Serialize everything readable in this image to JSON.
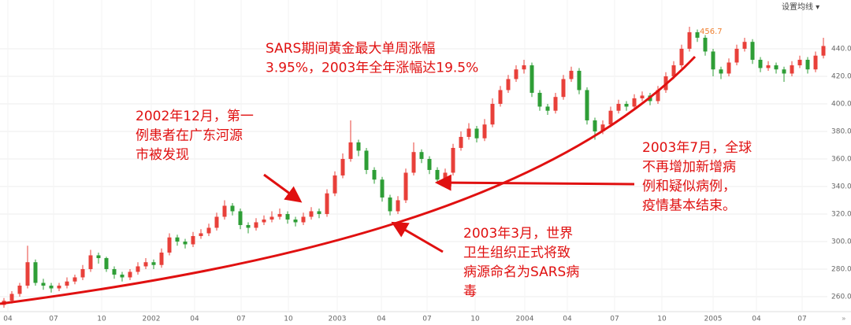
{
  "chart_data": {
    "type": "candlestick",
    "button": "设置均线 ▾",
    "peak_label": "456.7",
    "up_color": "#e8403a",
    "down_color": "#2e9e36",
    "annotation_color": "#e01010",
    "xlim": [
      -0.5,
      104.5
    ],
    "xticks": [
      {
        "value": 0.5,
        "label": "04"
      },
      {
        "value": 6.3,
        "label": "07"
      },
      {
        "value": 12.4,
        "label": "10"
      },
      {
        "value": 18.7,
        "label": "2002"
      },
      {
        "value": 24.2,
        "label": "04"
      },
      {
        "value": 30.1,
        "label": "07"
      },
      {
        "value": 36.1,
        "label": "10"
      },
      {
        "value": 42.3,
        "label": "2003"
      },
      {
        "value": 47.9,
        "label": "04"
      },
      {
        "value": 53.7,
        "label": "07"
      },
      {
        "value": 59.8,
        "label": "10"
      },
      {
        "value": 66.1,
        "label": "2004"
      },
      {
        "value": 71.5,
        "label": "04"
      },
      {
        "value": 77.5,
        "label": "07"
      },
      {
        "value": 83.5,
        "label": "10"
      },
      {
        "value": 90,
        "label": "2005"
      },
      {
        "value": 95.5,
        "label": "04"
      },
      {
        "value": 101.3,
        "label": "07"
      }
    ],
    "ylim": [
      249.7,
      475.4
    ],
    "yticks": [
      {
        "value": 260,
        "label": "260.00"
      },
      {
        "value": 280,
        "label": "280.00"
      },
      {
        "value": 300,
        "label": "300.00"
      },
      {
        "value": 320,
        "label": "320.00"
      },
      {
        "value": 340,
        "label": "340.00"
      },
      {
        "value": 360,
        "label": "360.00"
      },
      {
        "value": 380,
        "label": "380.00"
      },
      {
        "value": 400,
        "label": "400.00"
      },
      {
        "value": 420,
        "label": "420.00"
      },
      {
        "value": 440,
        "label": "440.00"
      }
    ],
    "grid": true,
    "candles": [
      [
        254,
        259,
        252,
        257
      ],
      [
        257,
        264,
        255,
        262
      ],
      [
        262,
        270,
        260,
        268
      ],
      [
        268,
        297,
        266,
        285
      ],
      [
        285,
        287,
        268,
        270
      ],
      [
        270,
        273,
        265,
        268
      ],
      [
        268,
        270,
        263,
        266
      ],
      [
        266,
        270,
        264,
        268
      ],
      [
        268,
        274,
        266,
        271
      ],
      [
        271,
        276,
        269,
        274
      ],
      [
        274,
        283,
        272,
        280
      ],
      [
        280,
        294,
        278,
        290
      ],
      [
        290,
        292,
        284,
        288
      ],
      [
        288,
        289,
        278,
        280
      ],
      [
        280,
        282,
        273,
        276
      ],
      [
        276,
        278,
        271,
        274
      ],
      [
        274,
        280,
        272,
        278
      ],
      [
        278,
        285,
        276,
        282
      ],
      [
        282,
        288,
        280,
        285
      ],
      [
        285,
        287,
        280,
        283
      ],
      [
        283,
        295,
        281,
        292
      ],
      [
        292,
        306,
        290,
        303
      ],
      [
        303,
        305,
        297,
        300
      ],
      [
        300,
        302,
        295,
        298
      ],
      [
        298,
        307,
        296,
        304
      ],
      [
        304,
        309,
        302,
        306
      ],
      [
        306,
        313,
        304,
        310
      ],
      [
        310,
        321,
        308,
        318
      ],
      [
        318,
        330,
        316,
        326
      ],
      [
        326,
        328,
        319,
        322
      ],
      [
        322,
        324,
        309,
        312
      ],
      [
        312,
        314,
        306,
        310
      ],
      [
        310,
        317,
        308,
        314
      ],
      [
        314,
        319,
        312,
        316
      ],
      [
        316,
        322,
        314,
        318
      ],
      [
        318,
        324,
        316,
        320
      ],
      [
        320,
        322,
        313,
        316
      ],
      [
        316,
        318,
        311,
        314
      ],
      [
        314,
        321,
        312,
        318
      ],
      [
        318,
        325,
        316,
        322
      ],
      [
        322,
        324,
        317,
        320
      ],
      [
        320,
        338,
        318,
        335
      ],
      [
        335,
        351,
        333,
        348
      ],
      [
        348,
        364,
        346,
        360
      ],
      [
        360,
        388,
        358,
        372
      ],
      [
        372,
        374,
        362,
        366
      ],
      [
        366,
        368,
        349,
        352
      ],
      [
        352,
        354,
        342,
        345
      ],
      [
        345,
        347,
        329,
        332
      ],
      [
        332,
        334,
        319,
        322
      ],
      [
        322,
        333,
        320,
        330
      ],
      [
        330,
        353,
        328,
        350
      ],
      [
        350,
        372,
        348,
        365
      ],
      [
        365,
        367,
        357,
        360
      ],
      [
        360,
        362,
        349,
        352
      ],
      [
        352,
        354,
        342,
        345
      ],
      [
        345,
        353,
        343,
        350
      ],
      [
        350,
        371,
        348,
        368
      ],
      [
        368,
        380,
        366,
        376
      ],
      [
        376,
        386,
        374,
        382
      ],
      [
        382,
        384,
        372,
        375
      ],
      [
        375,
        389,
        373,
        385
      ],
      [
        385,
        404,
        383,
        400
      ],
      [
        400,
        413,
        398,
        410
      ],
      [
        410,
        421,
        408,
        418
      ],
      [
        418,
        428,
        416,
        425
      ],
      [
        425,
        432,
        422,
        428
      ],
      [
        428,
        430,
        405,
        408
      ],
      [
        408,
        410,
        395,
        398
      ],
      [
        398,
        400,
        392,
        395
      ],
      [
        395,
        408,
        393,
        405
      ],
      [
        405,
        421,
        403,
        418
      ],
      [
        418,
        427,
        416,
        424
      ],
      [
        424,
        426,
        407,
        410
      ],
      [
        410,
        412,
        385,
        388
      ],
      [
        388,
        390,
        374,
        380
      ],
      [
        380,
        388,
        378,
        385
      ],
      [
        385,
        398,
        383,
        395
      ],
      [
        395,
        403,
        393,
        400
      ],
      [
        400,
        402,
        395,
        398
      ],
      [
        398,
        407,
        396,
        404
      ],
      [
        404,
        409,
        402,
        406
      ],
      [
        406,
        408,
        399,
        402
      ],
      [
        402,
        413,
        400,
        410
      ],
      [
        410,
        423,
        408,
        420
      ],
      [
        420,
        431,
        418,
        428
      ],
      [
        428,
        443,
        426,
        440
      ],
      [
        440,
        456,
        438,
        452
      ],
      [
        452,
        454,
        445,
        448
      ],
      [
        448,
        450,
        435,
        438
      ],
      [
        438,
        440,
        420,
        425
      ],
      [
        425,
        427,
        418,
        422
      ],
      [
        422,
        433,
        420,
        430
      ],
      [
        430,
        443,
        428,
        440
      ],
      [
        440,
        448,
        438,
        445
      ],
      [
        445,
        447,
        429,
        432
      ],
      [
        432,
        434,
        423,
        426
      ],
      [
        426,
        431,
        424,
        428
      ],
      [
        428,
        430,
        422,
        425
      ],
      [
        425,
        427,
        416,
        422
      ],
      [
        422,
        431,
        420,
        428
      ],
      [
        428,
        435,
        426,
        432
      ],
      [
        432,
        434,
        422,
        425
      ],
      [
        425,
        438,
        423,
        435
      ],
      [
        435,
        448,
        433,
        442
      ]
    ],
    "annotations": [
      {
        "lines": [
          "SARS期间黄金最大单周涨幅",
          "3.95%，2003年全年涨幅达19.5%"
        ]
      },
      {
        "lines": [
          "2002年12月，第一",
          "例患者在广东河源",
          "市被发现"
        ]
      },
      {
        "lines": [
          "2003年7月，全球",
          "不再增加新增病",
          "例和疑似病例，",
          "疫情基本结束。"
        ]
      },
      {
        "lines": [
          "2003年3月，世界",
          "卫生组织正式将致",
          "病源命名为SARS病",
          "毒"
        ]
      }
    ]
  }
}
